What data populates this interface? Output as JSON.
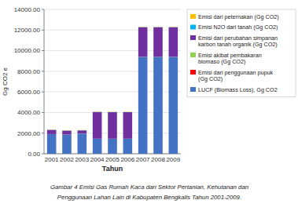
{
  "chart_data": {
    "type": "bar",
    "stacked": true,
    "categories": [
      "2001",
      "2002",
      "2003",
      "2004",
      "2005",
      "2006",
      "2007",
      "2008",
      "2009"
    ],
    "series": [
      {
        "name": "LUCF (Biomass Loss), Gg CO2",
        "color": "#4472C4",
        "values": [
          1900,
          1850,
          1950,
          1450,
          1450,
          1450,
          9400,
          9400,
          9400
        ]
      },
      {
        "name": "Emisi dari penggunaan pupuk\n(Gg CO2)",
        "color": "#FF0000",
        "values": [
          5,
          5,
          5,
          5,
          5,
          5,
          5,
          5,
          5
        ]
      },
      {
        "name": "Emisi akibat pembakaran\nbiomaso (Gg CO2)",
        "color": "#92D050",
        "values": [
          5,
          5,
          5,
          5,
          5,
          5,
          5,
          5,
          5
        ]
      },
      {
        "name": "Emisi dari perubahan simpanan\nkarbon tanah organik (Gg CO2)",
        "color": "#7030A0",
        "values": [
          400,
          380,
          300,
          2580,
          2570,
          2570,
          2860,
          2860,
          2860
        ]
      },
      {
        "name": "Emisi N2O dari tanah (Gg CO2)",
        "color": "#00B0F0",
        "values": [
          20,
          20,
          20,
          20,
          20,
          20,
          20,
          20,
          20
        ]
      },
      {
        "name": "Emisi dari peternakan (Gg CO2)",
        "color": "#FFC000",
        "values": [
          20,
          20,
          20,
          20,
          20,
          20,
          20,
          20,
          20
        ]
      }
    ],
    "x_label": "Tahun",
    "y_label": "Gg CO2 e",
    "ylim": [
      0,
      14000
    ],
    "yticks": [
      {
        "value": 0,
        "label": "0.00"
      },
      {
        "value": 2000,
        "label": "2000.00"
      },
      {
        "value": 4000,
        "label": "4000.00"
      },
      {
        "value": 6000,
        "label": "6000.00"
      },
      {
        "value": 8000,
        "label": "8000.00"
      },
      {
        "value": 10000,
        "label": "10000.00"
      },
      {
        "value": 12000,
        "label": "12000.00"
      },
      {
        "value": 14000,
        "label": "14000.00"
      }
    ],
    "grid": true,
    "legend": "right",
    "annotations": [
      "Gambar 4 Emisi Gas Rumah Kaca dari Sektor Pertanian, Kehutanan dan",
      "Penggunaan Lahan Lain di Kabupaten Bengkalis Tahun 2001-2009."
    ]
  }
}
